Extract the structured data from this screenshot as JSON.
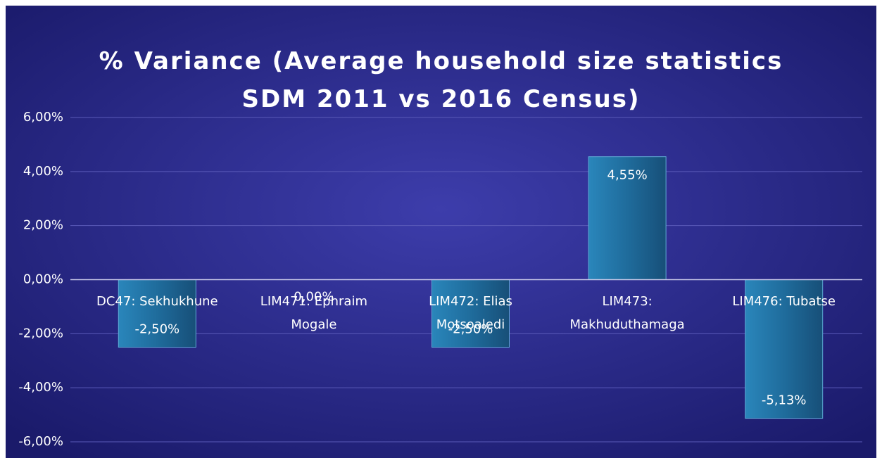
{
  "chart_data": {
    "type": "bar",
    "title": "% Variance (Average household size statistics\nSDM  2011 vs 2016 Census)",
    "categories": [
      "DC47: Sekhukhune",
      "LIM471: Ephraim Mogale",
      "LIM472: Elias Motsoaledi",
      "LIM473: Makhuduthamaga",
      "LIM476: Tubatse"
    ],
    "values": [
      -2.5,
      0,
      -2.5,
      4.55,
      -5.13
    ],
    "value_labels": [
      "-2,50%",
      "0,00%",
      "-2,50%",
      "4,55%",
      "-5,13%"
    ],
    "color": "#1f6c9c",
    "ylim": [
      -6,
      6
    ],
    "yticks": [
      {
        "value": -6,
        "label": "-6,00%"
      },
      {
        "value": -4,
        "label": "-4,00%"
      },
      {
        "value": -2,
        "label": "-2,00%"
      },
      {
        "value": 0,
        "label": "0,00%"
      },
      {
        "value": 2,
        "label": "2,00%"
      },
      {
        "value": 4,
        "label": "4,00%"
      },
      {
        "value": 6,
        "label": "6,00%"
      }
    ],
    "grid": true
  }
}
